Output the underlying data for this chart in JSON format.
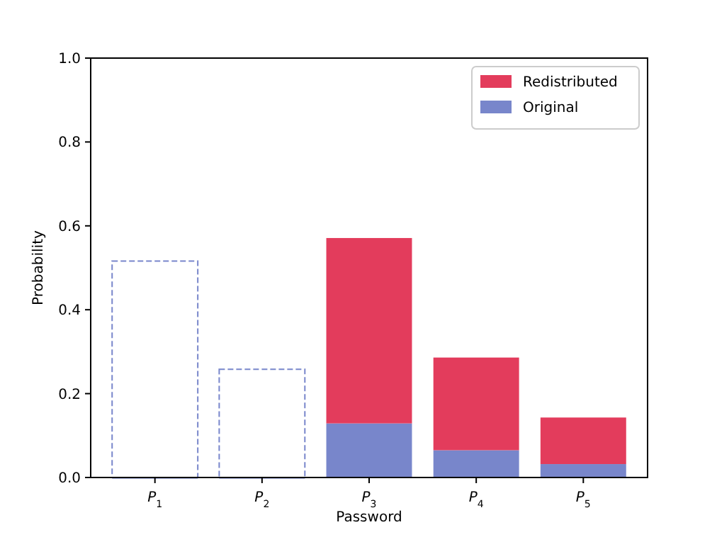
{
  "chart_data": {
    "type": "bar",
    "xlabel": "Password",
    "ylabel": "Probability",
    "categories": [
      "P$_{1}$",
      "P$_{2}$",
      "P$_{3}$",
      "P$_{4}$",
      "P$_{5}$"
    ],
    "stacked": true,
    "series": [
      {
        "name": "Original",
        "color": "#7886cb",
        "values": [
          0,
          0,
          0.129,
          0.065,
          0.032
        ]
      },
      {
        "name": "Redistributed",
        "color": "#e33c5c",
        "values": [
          null,
          null,
          0.442,
          0.221,
          0.111
        ]
      },
      {
        "color": "#7886cb",
        "line_style": "dashed",
        "values": [
          0.516,
          0.258,
          null,
          null,
          null
        ]
      }
    ],
    "ylim": [
      0,
      1
    ],
    "yticks": [
      {
        "value": 0,
        "label": "0.0"
      },
      {
        "value": 0.2,
        "label": "0.2"
      },
      {
        "value": 0.4,
        "label": "0.4"
      },
      {
        "value": 0.6,
        "label": "0.6"
      },
      {
        "value": 0.8,
        "label": "0.8"
      },
      {
        "value": 1,
        "label": "1.0"
      }
    ],
    "grid": false,
    "legend": "top right"
  }
}
